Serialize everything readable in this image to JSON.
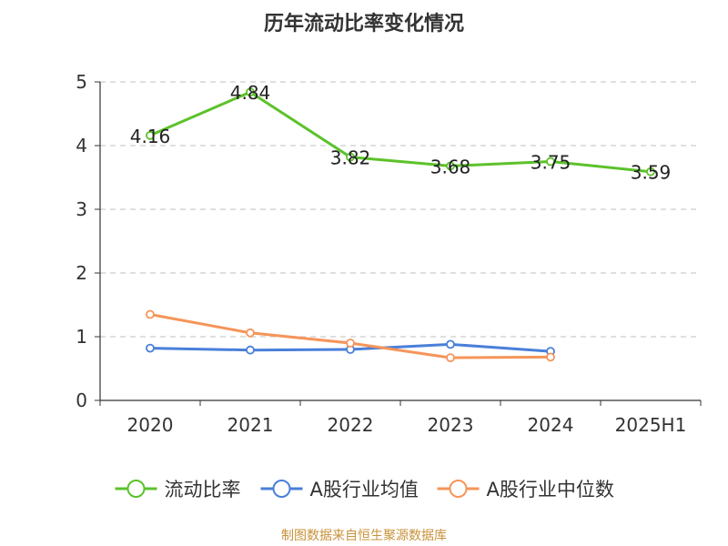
{
  "chart_data": {
    "type": "line",
    "title": "历年流动比率变化情况",
    "categories": [
      "2020",
      "2021",
      "2022",
      "2023",
      "2024",
      "2025H1"
    ],
    "ylim": [
      0,
      5
    ],
    "yticks": [
      "0",
      "1",
      "2",
      "3",
      "4",
      "5"
    ],
    "grid": true,
    "legend_position": "bottom",
    "series": [
      {
        "name": "流动比率",
        "color": "#5cc22a",
        "values": [
          4.16,
          4.84,
          3.82,
          3.68,
          3.75,
          3.59
        ],
        "labels": [
          "4.16",
          "4.84",
          "3.82",
          "3.68",
          "3.75",
          "3.59"
        ]
      },
      {
        "name": "A股行业均值",
        "color": "#4a7fd9",
        "values": [
          0.82,
          0.79,
          0.8,
          0.88,
          0.77,
          null
        ]
      },
      {
        "name": "A股行业中位数",
        "color": "#f5955a",
        "values": [
          1.35,
          1.06,
          0.9,
          0.67,
          0.68,
          null
        ]
      }
    ]
  },
  "source_note": {
    "text": "制图数据来自恒生聚源数据库",
    "color": "#c8923a"
  }
}
